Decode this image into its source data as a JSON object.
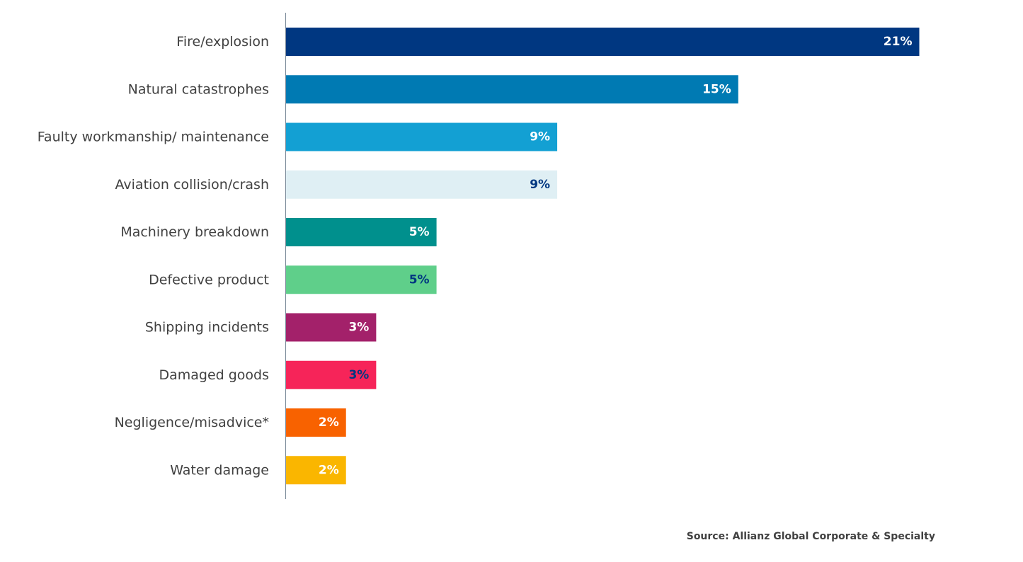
{
  "chart_data": {
    "type": "bar",
    "orientation": "horizontal",
    "categories": [
      "Fire/explosion",
      "Natural catastrophes",
      "Faulty workmanship/ maintenance",
      "Aviation collision/crash",
      "Machinery breakdown",
      "Defective product",
      "Shipping incidents",
      "Damaged goods",
      "Negligence/misadvice*",
      "Water damage"
    ],
    "values": [
      21,
      15,
      9,
      9,
      5,
      5,
      3,
      3,
      2,
      2
    ],
    "value_labels": [
      "21%",
      "15%",
      "9%",
      "9%",
      "5%",
      "5%",
      "3%",
      "3%",
      "2%",
      "2%"
    ],
    "bar_colors": [
      "#003781",
      "#007ab3",
      "#13a0d3",
      "#dfeff4",
      "#00908d",
      "#5fcf8a",
      "#a3216a",
      "#f62459",
      "#f86200",
      "#fab600"
    ],
    "label_colors": [
      "#ffffff",
      "#ffffff",
      "#ffffff",
      "#003781",
      "#ffffff",
      "#003781",
      "#ffffff",
      "#003781",
      "#ffffff",
      "#ffffff"
    ],
    "xlim": [
      0,
      21
    ],
    "grid": false,
    "legend": "none",
    "source": "Source: Allianz Global Corporate & Specialty"
  }
}
